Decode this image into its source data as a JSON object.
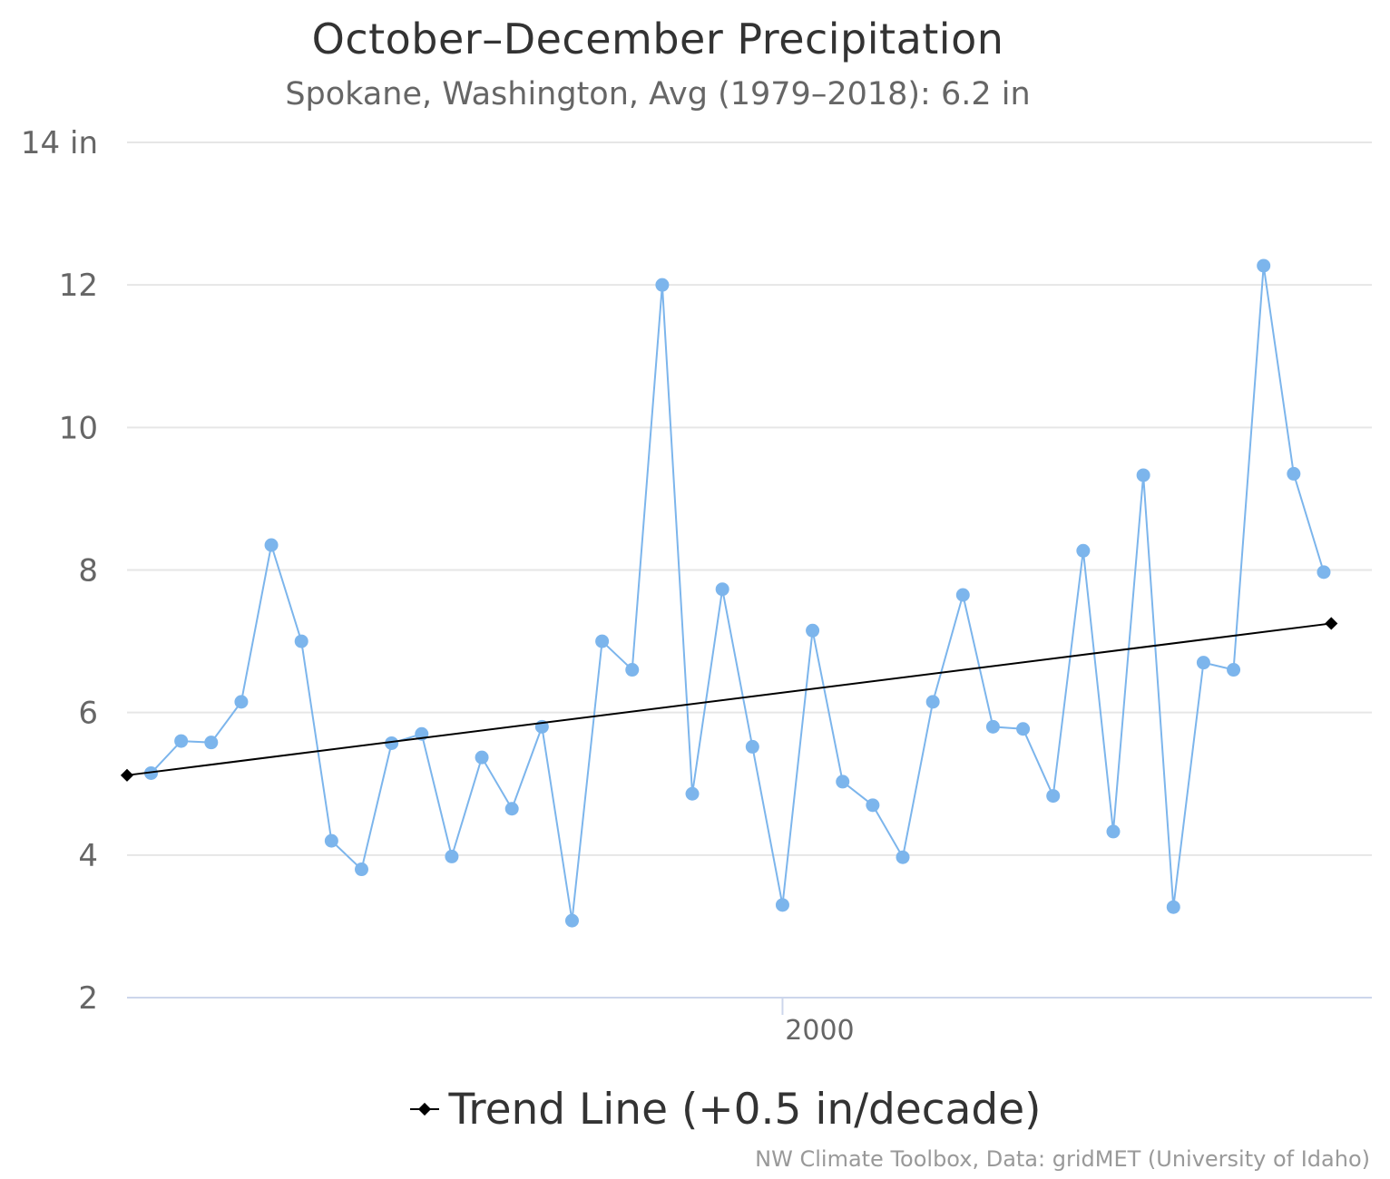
{
  "chart_data": {
    "type": "line",
    "title": "October–December Precipitation",
    "subtitle": "Spokane, Washington, Avg (1979–2018): 6.2 in",
    "xlabel": "",
    "ylabel": "",
    "xlim": [
      1979,
      2019
    ],
    "ylim": [
      2,
      14
    ],
    "y_ticks": [
      "2",
      "4",
      "6",
      "8",
      "10",
      "12",
      "14 in"
    ],
    "x_ticks": [
      "2000"
    ],
    "grid": true,
    "legend_position": "bottom",
    "series": [
      {
        "color": "#7cb5ec",
        "x": [
          1979,
          1980,
          1981,
          1982,
          1983,
          1984,
          1985,
          1986,
          1987,
          1988,
          1989,
          1990,
          1991,
          1992,
          1993,
          1994,
          1995,
          1996,
          1997,
          1998,
          1999,
          2000,
          2001,
          2002,
          2003,
          2004,
          2005,
          2006,
          2007,
          2008,
          2009,
          2010,
          2011,
          2012,
          2013,
          2014,
          2015,
          2016,
          2017,
          2018
        ],
        "values": [
          5.15,
          5.6,
          5.58,
          6.15,
          8.35,
          7.0,
          4.2,
          3.8,
          5.57,
          5.7,
          3.98,
          5.37,
          4.65,
          5.8,
          3.08,
          7.0,
          6.6,
          12.0,
          4.86,
          7.73,
          5.52,
          3.3,
          7.15,
          5.03,
          4.7,
          3.97,
          6.15,
          7.65,
          5.8,
          5.77,
          4.83,
          8.27,
          4.33,
          9.33,
          3.27,
          6.7,
          6.6,
          12.27,
          9.35,
          7.97
        ]
      },
      {
        "name": "Trend Line (+0.5 in/decade)",
        "color": "#000000",
        "x": [
          1978.2,
          2018.25
        ],
        "values": [
          5.12,
          7.25
        ]
      }
    ]
  },
  "credits": "NW Climate Toolbox, Data: gridMET (University of Idaho)"
}
